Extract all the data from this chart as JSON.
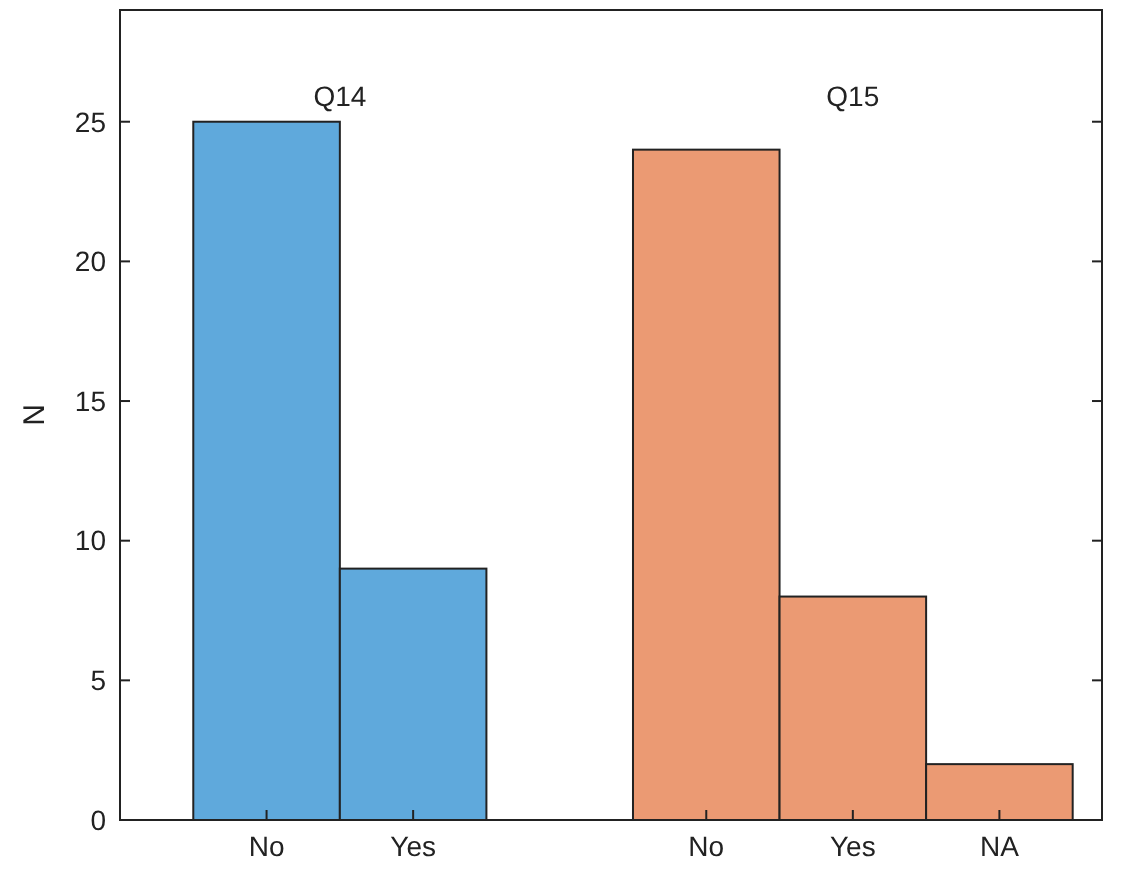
{
  "chart_data": {
    "type": "bar",
    "ylabel": "N",
    "categories": [
      "No",
      "Yes",
      null,
      "No",
      "Yes",
      "NA"
    ],
    "values": [
      25,
      9,
      null,
      24,
      8,
      2
    ],
    "colors": [
      "#5fa9dc",
      "#5fa9dc",
      null,
      "#eb9a73",
      "#eb9a73",
      "#eb9a73"
    ],
    "ylim": [
      0,
      29
    ],
    "yticks": [
      0,
      5,
      10,
      15,
      20,
      25
    ],
    "annotations": [
      "Q14",
      "Q15"
    ]
  }
}
